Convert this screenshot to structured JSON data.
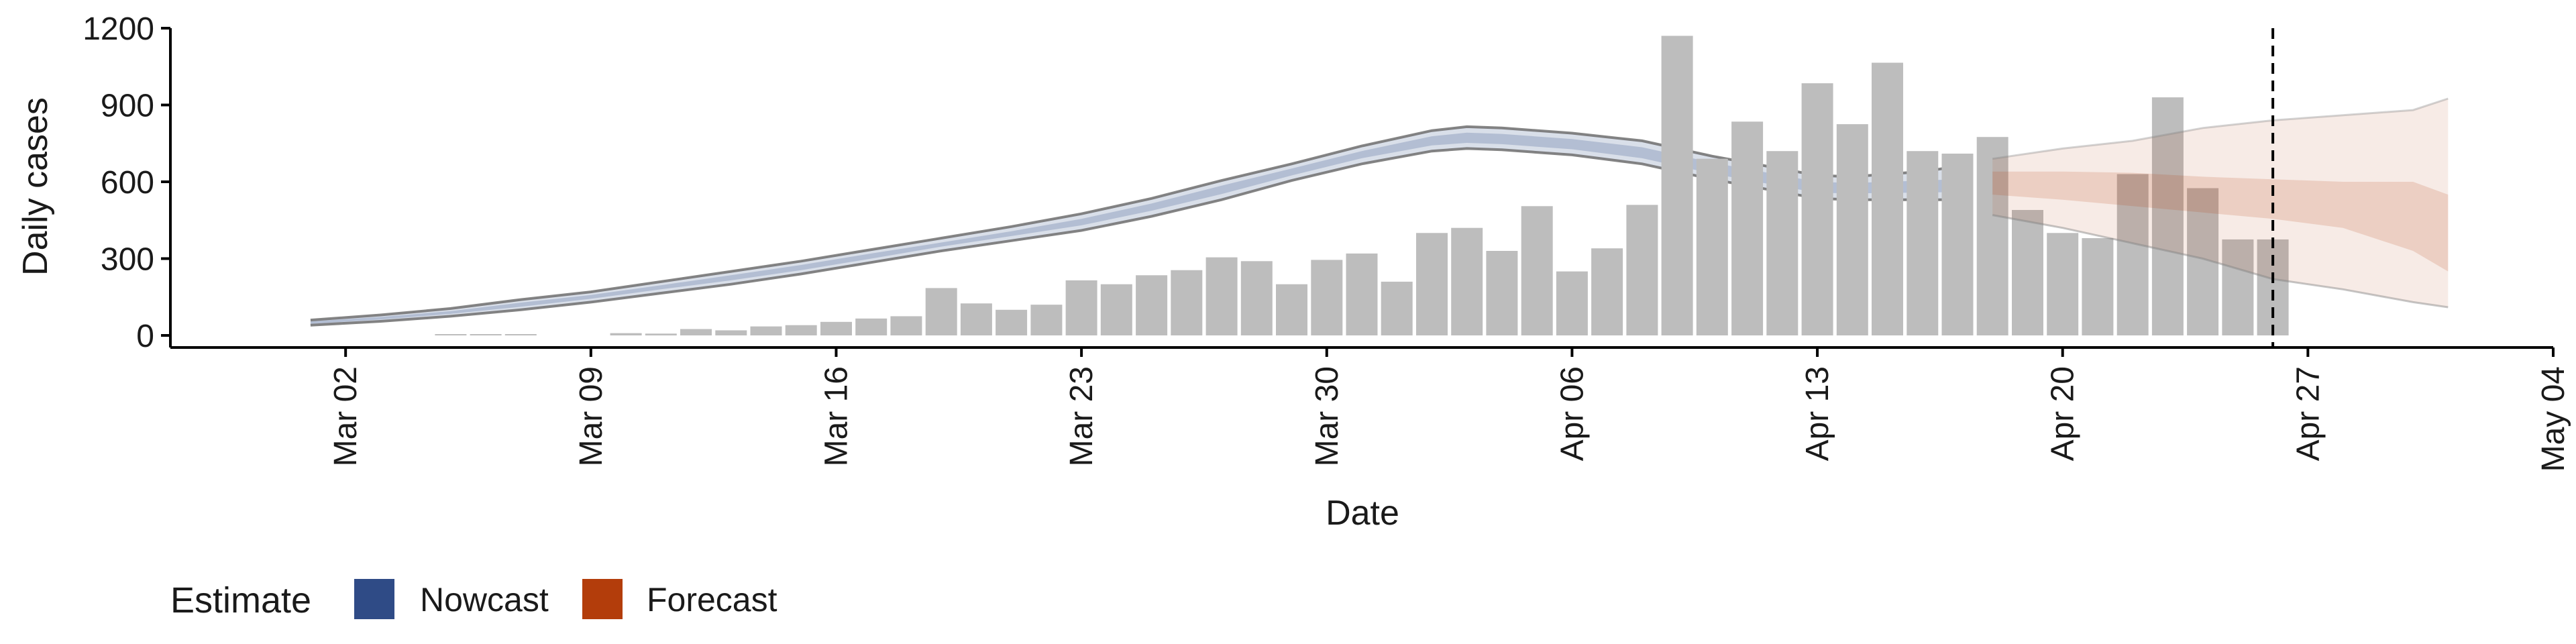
{
  "chart_data": {
    "type": "bar",
    "xlabel": "Date",
    "ylabel": "Daily cases",
    "ylim": [
      0,
      1200
    ],
    "yticks": [
      0,
      300,
      600,
      900,
      1200
    ],
    "x_range": [
      "2020-02-26",
      "2020-05-04"
    ],
    "xtick_dates": [
      "2020-03-02",
      "2020-03-09",
      "2020-03-16",
      "2020-03-23",
      "2020-03-30",
      "2020-04-06",
      "2020-04-13",
      "2020-04-20",
      "2020-04-27",
      "2020-05-04"
    ],
    "xtick_labels": [
      "Mar 02",
      "Mar 09",
      "Mar 16",
      "Mar 23",
      "Mar 30",
      "Apr 06",
      "Apr 13",
      "Apr 20",
      "Apr 27",
      "May 04"
    ],
    "vline_date": "2020-04-26",
    "grid": false,
    "legend": {
      "position": "bottom-left",
      "title": "Estimate",
      "items": [
        {
          "label": "Nowcast",
          "color": "#2F4B86"
        },
        {
          "label": "Forecast",
          "color": "#B33D0B"
        }
      ]
    },
    "bars": {
      "color": "#BDBDBD",
      "dates": [
        "2020-03-05",
        "2020-03-06",
        "2020-03-07",
        "2020-03-08",
        "2020-03-09",
        "2020-03-10",
        "2020-03-11",
        "2020-03-12",
        "2020-03-13",
        "2020-03-14",
        "2020-03-15",
        "2020-03-16",
        "2020-03-17",
        "2020-03-18",
        "2020-03-19",
        "2020-03-20",
        "2020-03-21",
        "2020-03-22",
        "2020-03-23",
        "2020-03-24",
        "2020-03-25",
        "2020-03-26",
        "2020-03-27",
        "2020-03-28",
        "2020-03-29",
        "2020-03-30",
        "2020-03-31",
        "2020-04-01",
        "2020-04-02",
        "2020-04-03",
        "2020-04-04",
        "2020-04-05",
        "2020-04-06",
        "2020-04-07",
        "2020-04-08",
        "2020-04-09",
        "2020-04-10",
        "2020-04-11",
        "2020-04-12",
        "2020-04-13",
        "2020-04-14",
        "2020-04-15",
        "2020-04-16",
        "2020-04-17",
        "2020-04-18",
        "2020-04-19",
        "2020-04-20",
        "2020-04-21",
        "2020-04-22",
        "2020-04-23",
        "2020-04-24",
        "2020-04-25",
        "2020-04-26"
      ],
      "values": [
        2,
        3,
        3,
        0,
        0,
        9,
        7,
        25,
        20,
        35,
        40,
        53,
        66,
        75,
        185,
        125,
        100,
        120,
        215,
        200,
        235,
        255,
        305,
        290,
        200,
        295,
        320,
        210,
        400,
        420,
        330,
        505,
        250,
        340,
        510,
        1170,
        690,
        835,
        720,
        985,
        825,
        1065,
        720,
        710,
        775,
        490,
        400,
        380,
        630,
        930,
        575,
        375,
        375
      ]
    },
    "nowcast": {
      "color": "#2F4B86",
      "dates": [
        "2020-03-01",
        "2020-03-03",
        "2020-03-05",
        "2020-03-07",
        "2020-03-09",
        "2020-03-11",
        "2020-03-13",
        "2020-03-15",
        "2020-03-17",
        "2020-03-19",
        "2020-03-21",
        "2020-03-23",
        "2020-03-25",
        "2020-03-27",
        "2020-03-29",
        "2020-03-31",
        "2020-04-02",
        "2020-04-03",
        "2020-04-04",
        "2020-04-06",
        "2020-04-08",
        "2020-04-10",
        "2020-04-12",
        "2020-04-13",
        "2020-04-14",
        "2020-04-16",
        "2020-04-17"
      ],
      "upper_90": [
        60,
        80,
        105,
        140,
        170,
        210,
        250,
        290,
        335,
        380,
        425,
        475,
        535,
        605,
        670,
        740,
        800,
        815,
        810,
        790,
        760,
        700,
        650,
        625,
        620,
        640,
        660
      ],
      "lower_90": [
        40,
        55,
        75,
        100,
        130,
        165,
        200,
        240,
        285,
        330,
        370,
        410,
        465,
        530,
        605,
        670,
        720,
        730,
        725,
        705,
        670,
        610,
        560,
        535,
        530,
        530,
        530
      ],
      "upper_50": [
        55,
        72,
        95,
        128,
        158,
        196,
        235,
        275,
        320,
        363,
        407,
        455,
        515,
        585,
        652,
        720,
        778,
        792,
        787,
        767,
        735,
        675,
        625,
        600,
        595,
        605,
        610
      ],
      "lower_50": [
        45,
        62,
        84,
        112,
        143,
        180,
        215,
        255,
        300,
        347,
        388,
        430,
        487,
        552,
        625,
        692,
        742,
        752,
        747,
        727,
        692,
        632,
        582,
        557,
        555,
        558,
        560
      ]
    },
    "forecast": {
      "color": "#B33D0B",
      "dates": [
        "2020-04-18",
        "2020-04-20",
        "2020-04-22",
        "2020-04-24",
        "2020-04-26",
        "2020-04-28",
        "2020-04-30",
        "2020-05-01"
      ],
      "upper_90": [
        690,
        730,
        760,
        810,
        840,
        860,
        880,
        925
      ],
      "lower_90": [
        470,
        420,
        360,
        300,
        220,
        180,
        130,
        110
      ],
      "upper_50": [
        640,
        640,
        635,
        620,
        610,
        600,
        600,
        550
      ],
      "lower_50": [
        550,
        530,
        505,
        480,
        455,
        420,
        330,
        250
      ]
    }
  }
}
